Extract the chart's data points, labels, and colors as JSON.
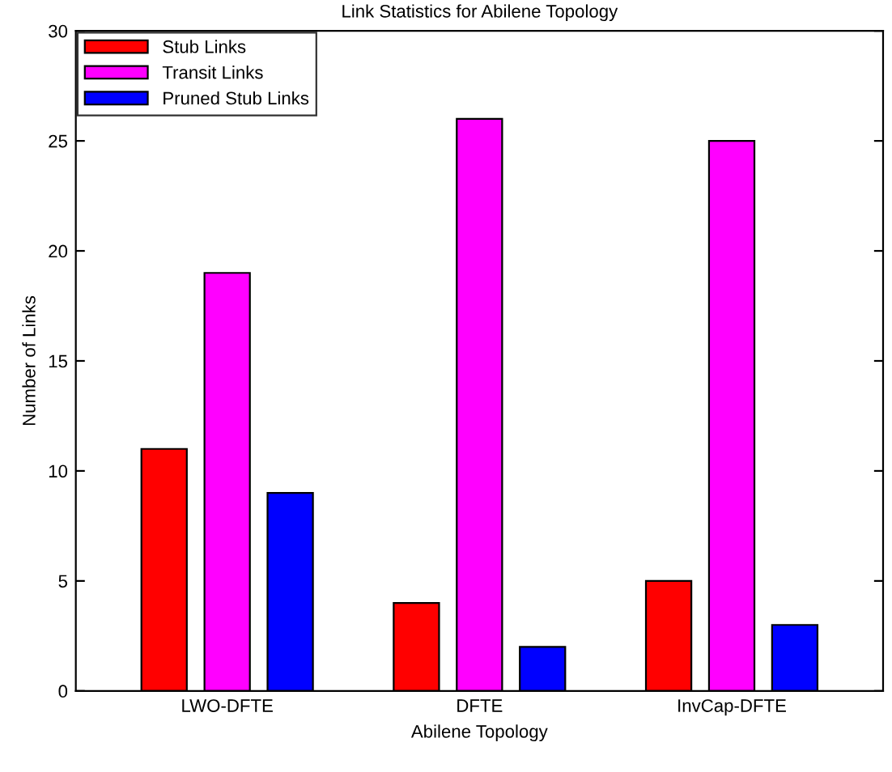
{
  "chart_data": {
    "type": "bar",
    "title": "Link Statistics for Abilene Topology",
    "xlabel": "Abilene Topology",
    "ylabel": "Number of Links",
    "categories": [
      "LWO-DFTE",
      "DFTE",
      "InvCap-DFTE"
    ],
    "series": [
      {
        "name": "Stub Links",
        "color": "#ff0000",
        "values": [
          11,
          4,
          5
        ]
      },
      {
        "name": "Transit Links",
        "color": "#ff00ff",
        "values": [
          19,
          26,
          25
        ]
      },
      {
        "name": "Pruned Stub Links",
        "color": "#0000ff",
        "values": [
          9,
          2,
          3
        ]
      }
    ],
    "ylim": [
      0,
      30
    ],
    "yticks": [
      0,
      5,
      10,
      15,
      20,
      25,
      30
    ],
    "grid": false,
    "legend": "top left"
  }
}
